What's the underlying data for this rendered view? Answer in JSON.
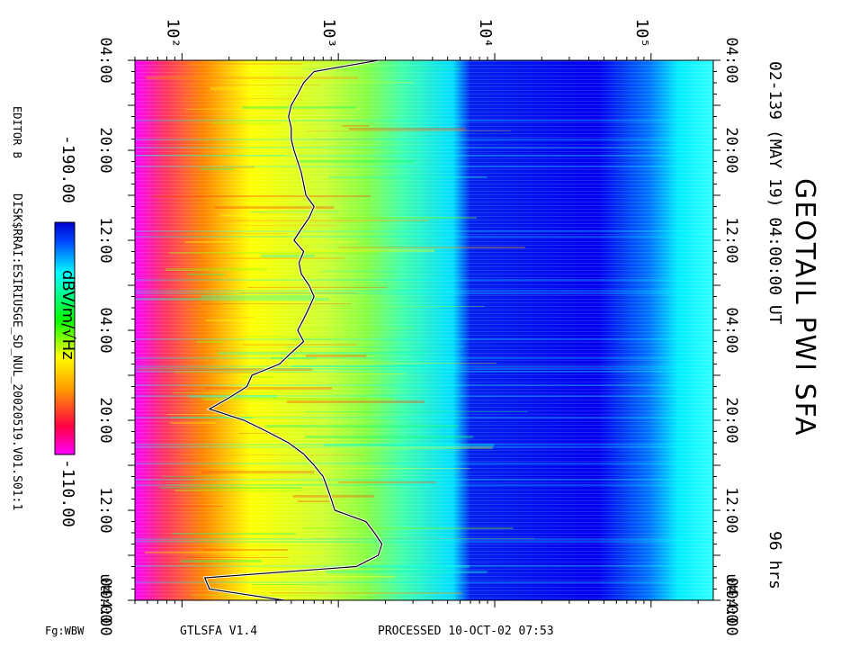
{
  "header": {
    "title": "GEOTAIL PWI SFA",
    "date_line": "02-139 (MAY 19) 04:00:00 UT",
    "duration": "96 hrs"
  },
  "footer": {
    "editor": "EDITOR B",
    "disk": "DISK$RRAI:ESIRIUSGE_SD_NUL_20020519.V01.S01:1",
    "version": "GTLSFA   V1.4",
    "processed": "PROCESSED 10-OCT-02  07:53",
    "id": "Fg:WBW"
  },
  "colorbar": {
    "label": "dBV/m/√Hz",
    "min_label": "-190.00",
    "max_label": "-110.00",
    "colors": [
      "#ff00ff",
      "#ff0044",
      "#ff9900",
      "#ffff00",
      "#00ff00",
      "#00ffff",
      "#0044ff",
      "#0000cc"
    ]
  },
  "chart_data": {
    "type": "heatmap",
    "title": "GEOTAIL PWI SFA",
    "x_axis": {
      "scale": "log",
      "range_hz": [
        50,
        250000
      ],
      "tick_labels": [
        "10²",
        "10³",
        "10⁴",
        "10⁵"
      ],
      "tick_values_hz": [
        100,
        1000,
        10000,
        100000
      ]
    },
    "y_axis": {
      "tick_labels": [
        "04:00",
        "20:00",
        "12:00",
        "04:00",
        "20:00",
        "12:00",
        "04:00"
      ],
      "tick_hours": [
        96,
        80,
        64,
        48,
        32,
        16,
        0
      ],
      "bottom_label": "04:00",
      "ut_label": "UT",
      "range_hours": [
        0,
        96
      ]
    },
    "cutoff_line": {
      "hours": [
        0,
        2,
        4,
        6,
        8,
        10,
        12,
        14,
        16,
        18,
        20,
        22,
        24,
        26,
        28,
        30,
        32,
        34,
        36,
        38,
        40,
        42,
        44,
        46,
        48,
        50,
        52,
        54,
        56,
        58,
        60,
        62,
        64,
        66,
        68,
        70,
        72,
        74,
        76,
        78,
        80,
        82,
        84,
        86,
        88,
        90,
        92,
        94,
        96
      ],
      "freq_hz": [
        450,
        150,
        140,
        1300,
        1800,
        1900,
        1700,
        1500,
        950,
        900,
        850,
        800,
        700,
        600,
        480,
        350,
        250,
        150,
        200,
        260,
        280,
        420,
        500,
        600,
        550,
        600,
        650,
        700,
        650,
        580,
        560,
        600,
        520,
        580,
        650,
        700,
        620,
        600,
        580,
        550,
        520,
        500,
        500,
        480,
        500,
        550,
        600,
        700,
        1800
      ]
    }
  }
}
